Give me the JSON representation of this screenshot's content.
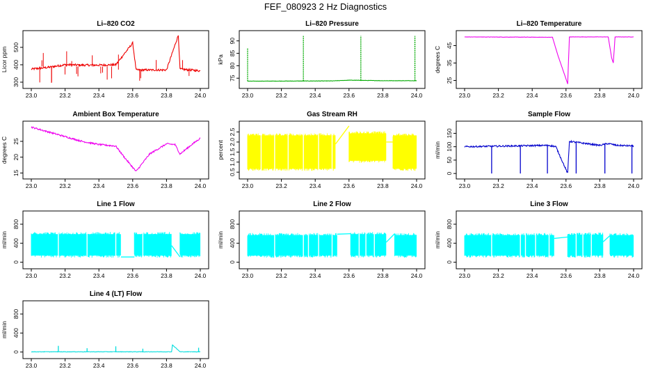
{
  "title": "FEF_080923  2 Hz Diagnostics",
  "chart_data": [
    {
      "type": "line",
      "title": "Li–820 CO2",
      "ylabel": "Licor ppm",
      "color": "#ee0000",
      "noise": 0.02,
      "xlim": [
        23.0,
        24.0
      ],
      "ylim": [
        280,
        580
      ],
      "xticks": [
        23.0,
        23.2,
        23.4,
        23.6,
        23.8,
        24.0
      ],
      "xtick_labels": [
        "23.0",
        "23.2",
        "23.4",
        "23.6",
        "23.8",
        "24.0"
      ],
      "yticks": [
        300,
        400,
        500
      ],
      "ytick_labels": [
        "300",
        "400",
        "500"
      ],
      "x": [
        23.0,
        23.1,
        23.2,
        23.3,
        23.4,
        23.5,
        23.6,
        23.62,
        23.7,
        23.8,
        23.87,
        23.88,
        24.0
      ],
      "y": [
        375,
        385,
        400,
        398,
        398,
        400,
        525,
        370,
        370,
        370,
        570,
        375,
        365
      ]
    },
    {
      "type": "line",
      "title": "Li–820 Pressure",
      "ylabel": "kPa",
      "color": "#00aa00",
      "noise": 0.003,
      "xlim": [
        23.0,
        24.0
      ],
      "ylim": [
        72,
        93
      ],
      "xticks": [
        23.0,
        23.2,
        23.4,
        23.6,
        23.8,
        24.0
      ],
      "xtick_labels": [
        "23.0",
        "23.2",
        "23.4",
        "23.6",
        "23.8",
        "24.0"
      ],
      "yticks": [
        75,
        80,
        85,
        90
      ],
      "ytick_labels": [
        "75",
        "80",
        "85",
        "90"
      ],
      "x": [
        23.0,
        23.5,
        23.6,
        23.8,
        24.0
      ],
      "y": [
        73.8,
        73.9,
        74.2,
        74.0,
        74.0
      ],
      "spikes": [
        [
          23.0,
          87
        ],
        [
          23.33,
          92
        ],
        [
          23.67,
          92
        ],
        [
          23.99,
          92
        ]
      ]
    },
    {
      "type": "line",
      "title": "Li–820 Temperature",
      "ylabel": "degrees C",
      "color": "#ee00ee",
      "noise": 0.003,
      "xlim": [
        23.0,
        24.0
      ],
      "ylim": [
        22,
        52
      ],
      "xticks": [
        23.0,
        23.2,
        23.4,
        23.6,
        23.8,
        24.0
      ],
      "xtick_labels": [
        "23.0",
        "23.2",
        "23.4",
        "23.6",
        "23.8",
        "24.0"
      ],
      "yticks": [
        25,
        35,
        45
      ],
      "ytick_labels": [
        "25",
        "35",
        "45"
      ],
      "x": [
        23.0,
        23.52,
        23.55,
        23.61,
        23.62,
        23.85,
        23.87,
        23.88,
        23.89,
        24.0
      ],
      "y": [
        50,
        49.8,
        40,
        23,
        50,
        50,
        38,
        35,
        50,
        50
      ]
    },
    {
      "type": "line",
      "title": "Ambient Box Temperature",
      "ylabel": "degrees C",
      "color": "#ee00ee",
      "noise": 0.015,
      "xlim": [
        23.0,
        24.0
      ],
      "ylim": [
        14,
        30.5
      ],
      "xticks": [
        23.0,
        23.2,
        23.4,
        23.6,
        23.8,
        24.0
      ],
      "xtick_labels": [
        "23.0",
        "23.2",
        "23.4",
        "23.6",
        "23.8",
        "24.0"
      ],
      "yticks": [
        15,
        20,
        25
      ],
      "ytick_labels": [
        "15",
        "20",
        "25"
      ],
      "x": [
        23.0,
        23.1,
        23.2,
        23.3,
        23.4,
        23.5,
        23.55,
        23.62,
        23.7,
        23.8,
        23.85,
        23.88,
        23.95,
        24.0
      ],
      "y": [
        29.5,
        28,
        26.5,
        25,
        24,
        23.5,
        20,
        15.5,
        21,
        24.2,
        24,
        21,
        24,
        26
      ]
    },
    {
      "type": "band",
      "title": "Gas Stream RH",
      "ylabel": "percent",
      "color": "#ffff00",
      "xlim": [
        23.0,
        24.0
      ],
      "ylim": [
        0.3,
        2.9
      ],
      "xticks": [
        23.0,
        23.2,
        23.4,
        23.6,
        23.8,
        24.0
      ],
      "xtick_labels": [
        "23.0",
        "23.2",
        "23.4",
        "23.6",
        "23.8",
        "24.0"
      ],
      "yticks": [
        0.5,
        1.0,
        1.5,
        2.0,
        2.5
      ],
      "ytick_labels": [
        "0.5",
        "1.0",
        "1.5",
        "2.0",
        "2.5"
      ],
      "segments": [
        [
          23.0,
          23.52,
          0.6,
          2.4
        ],
        [
          23.6,
          23.82,
          1.0,
          2.5
        ],
        [
          23.86,
          24.0,
          0.6,
          2.4
        ]
      ],
      "connectors": [
        [
          23.52,
          1.9,
          23.6,
          2.8
        ],
        [
          23.82,
          2.0,
          23.86,
          2.0
        ]
      ],
      "dropouts": [
        23.08,
        23.16,
        23.24,
        23.33,
        23.42,
        23.5
      ]
    },
    {
      "type": "line",
      "title": "Sample Flow",
      "ylabel": "ml/min",
      "color": "#0000cc",
      "noise": 0.015,
      "xlim": [
        23.0,
        24.0
      ],
      "ylim": [
        -10,
        185
      ],
      "xticks": [
        23.0,
        23.2,
        23.4,
        23.6,
        23.8,
        24.0
      ],
      "xtick_labels": [
        "23.0",
        "23.2",
        "23.4",
        "23.6",
        "23.8",
        "24.0"
      ],
      "yticks": [
        0,
        50,
        100,
        150
      ],
      "ytick_labels": [
        "0",
        "50",
        "100",
        "150"
      ],
      "x": [
        23.0,
        23.2,
        23.5,
        23.54,
        23.61,
        23.62,
        23.8,
        23.85,
        23.9,
        24.0
      ],
      "y": [
        100,
        102,
        105,
        100,
        0,
        120,
        105,
        112,
        105,
        103
      ],
      "spikes": [
        [
          23.16,
          0
        ],
        [
          23.33,
          0
        ],
        [
          23.49,
          0
        ],
        [
          23.66,
          0
        ],
        [
          23.83,
          0
        ],
        [
          23.99,
          0
        ]
      ]
    },
    {
      "type": "band",
      "title": "Line 1 Flow",
      "ylabel": "ml/min",
      "color": "#00ffff",
      "xlim": [
        23.0,
        24.0
      ],
      "ylim": [
        -80,
        1020
      ],
      "xticks": [
        23.0,
        23.2,
        23.4,
        23.6,
        23.8,
        24.0
      ],
      "xtick_labels": [
        "23.0",
        "23.2",
        "23.4",
        "23.6",
        "23.8",
        "24.0"
      ],
      "yticks": [
        0,
        400,
        800
      ],
      "ytick_labels": [
        "0",
        "400",
        "800"
      ],
      "segments": [
        [
          23.0,
          23.53,
          110,
          620
        ],
        [
          23.61,
          23.83,
          110,
          620
        ],
        [
          23.88,
          24.0,
          110,
          620
        ]
      ],
      "connectors": [
        [
          23.53,
          110,
          23.61,
          110
        ],
        [
          23.83,
          350,
          23.88,
          110
        ]
      ],
      "dropouts": [
        23.16,
        23.33,
        23.5,
        23.66
      ]
    },
    {
      "type": "band",
      "title": "Line 2 Flow",
      "ylabel": "ml/min",
      "color": "#00ffff",
      "xlim": [
        23.0,
        24.0
      ],
      "ylim": [
        -80,
        1020
      ],
      "xticks": [
        23.0,
        23.2,
        23.4,
        23.6,
        23.8,
        24.0
      ],
      "xtick_labels": [
        "23.0",
        "23.2",
        "23.4",
        "23.6",
        "23.8",
        "24.0"
      ],
      "yticks": [
        0,
        400,
        800
      ],
      "ytick_labels": [
        "0",
        "400",
        "800"
      ],
      "segments": [
        [
          23.0,
          23.53,
          110,
          600
        ],
        [
          23.61,
          23.82,
          110,
          620
        ],
        [
          23.87,
          24.0,
          110,
          600
        ]
      ],
      "connectors": [
        [
          23.53,
          590,
          23.61,
          600
        ],
        [
          23.82,
          420,
          23.87,
          600
        ]
      ],
      "dropouts": [
        23.16,
        23.33,
        23.36,
        23.42,
        23.5,
        23.66,
        23.7,
        23.75
      ]
    },
    {
      "type": "band",
      "title": "Line 3 Flow",
      "ylabel": "ml/min",
      "color": "#00ffff",
      "xlim": [
        23.0,
        24.0
      ],
      "ylim": [
        -80,
        1020
      ],
      "xticks": [
        23.0,
        23.2,
        23.4,
        23.6,
        23.8,
        24.0
      ],
      "xtick_labels": [
        "23.0",
        "23.2",
        "23.4",
        "23.6",
        "23.8",
        "24.0"
      ],
      "yticks": [
        0,
        400,
        800
      ],
      "ytick_labels": [
        "0",
        "400",
        "800"
      ],
      "segments": [
        [
          23.0,
          23.53,
          110,
          600
        ],
        [
          23.61,
          23.82,
          110,
          610
        ],
        [
          23.86,
          24.0,
          110,
          600
        ]
      ],
      "connectors": [
        [
          23.53,
          500,
          23.61,
          530
        ],
        [
          23.82,
          430,
          23.86,
          560
        ]
      ],
      "dropouts": [
        23.16,
        23.33,
        23.36,
        23.42,
        23.5,
        23.66,
        23.7,
        23.75
      ]
    },
    {
      "type": "line",
      "title": "Line 4 (LT) Flow",
      "ylabel": "ml/min",
      "color": "#00dddd",
      "noise": 0.004,
      "xlim": [
        23.0,
        24.0
      ],
      "ylim": [
        -80,
        1020
      ],
      "xticks": [
        23.0,
        23.2,
        23.4,
        23.6,
        23.8,
        24.0
      ],
      "xtick_labels": [
        "23.0",
        "23.2",
        "23.4",
        "23.6",
        "23.8",
        "24.0"
      ],
      "yticks": [
        0,
        400,
        800
      ],
      "ytick_labels": [
        "0",
        "400",
        "800"
      ],
      "x": [
        23.0,
        23.83,
        23.835,
        23.88,
        24.0
      ],
      "y": [
        5,
        5,
        150,
        5,
        5
      ],
      "spikes": [
        [
          23.16,
          130
        ],
        [
          23.33,
          80
        ],
        [
          23.5,
          120
        ],
        [
          23.66,
          70
        ],
        [
          23.99,
          90
        ]
      ]
    }
  ]
}
